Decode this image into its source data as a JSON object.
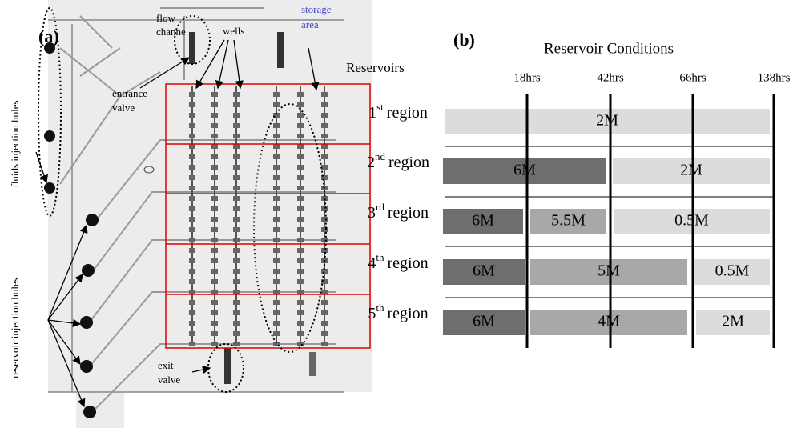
{
  "panel_a": {
    "label": "(a)",
    "annotations": {
      "flow_channel": [
        "flow",
        "channe"
      ],
      "wells": "wells",
      "storage_area": [
        "storage",
        "area"
      ],
      "reservoirs": "Reservoirs",
      "entrance_valve": [
        "entrance",
        "valve"
      ],
      "fluids_holes": "fluids injection holes",
      "reservoir_holes": "reservoir injection holes",
      "exit_valve": [
        "exit",
        "valve"
      ]
    }
  },
  "panel_b": {
    "label": "(b)",
    "title": "Reservoir Conditions",
    "times": [
      "18hrs",
      "42hrs",
      "66hrs",
      "138hrs"
    ],
    "rows": [
      {
        "num": "1",
        "sup": "st",
        "word": "region",
        "segments": [
          "2M"
        ]
      },
      {
        "num": "2",
        "sup": "nd",
        "word": "region",
        "segments": [
          "6M",
          "2M"
        ]
      },
      {
        "num": "3",
        "sup": "rd",
        "word": "region",
        "segments": [
          "6M",
          "5.5M",
          "0.5M"
        ]
      },
      {
        "num": "4",
        "sup": "th",
        "word": "region",
        "segments": [
          "6M",
          "5M",
          "0.5M"
        ]
      },
      {
        "num": "5",
        "sup": "th",
        "word": "region",
        "segments": [
          "6M",
          "4M",
          "2M"
        ]
      }
    ]
  }
}
